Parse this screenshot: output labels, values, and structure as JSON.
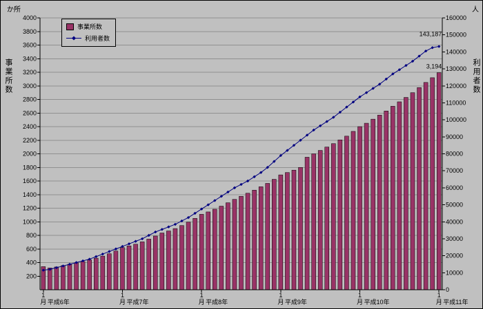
{
  "chart": {
    "left_unit": "か所",
    "right_unit": "人",
    "left_axis_title": "事業所数",
    "right_axis_title": "利用者数",
    "legend": {
      "bars_label": "事業所数",
      "line_label": "利用者数"
    }
  },
  "chart_data": {
    "type": "bar",
    "subtype": "bar+line combo",
    "n_points": 61,
    "x_januaries": [
      {
        "index": 0,
        "month": "1月",
        "year": "平成6年"
      },
      {
        "index": 12,
        "month": "1月",
        "year": "平成7年"
      },
      {
        "index": 24,
        "month": "1月",
        "year": "平成8年"
      },
      {
        "index": 36,
        "month": "1月",
        "year": "平成9年"
      },
      {
        "index": 48,
        "month": "1月",
        "year": "平成10年"
      },
      {
        "index": 60,
        "month": "1月",
        "year": "平成11年"
      }
    ],
    "series": [
      {
        "name": "事業所数",
        "type": "bar",
        "axis": "left",
        "color": "#993366",
        "values": [
          340,
          320,
          335,
          355,
          375,
          395,
          415,
          440,
          465,
          495,
          530,
          570,
          620,
          645,
          670,
          705,
          745,
          790,
          835,
          865,
          900,
          945,
          995,
          1050,
          1110,
          1145,
          1185,
          1230,
          1280,
          1330,
          1375,
          1420,
          1465,
          1515,
          1565,
          1625,
          1690,
          1725,
          1760,
          1800,
          1950,
          2000,
          2050,
          2100,
          2150,
          2205,
          2260,
          2330,
          2400,
          2450,
          2510,
          2570,
          2630,
          2700,
          2765,
          2830,
          2900,
          2975,
          3050,
          3120,
          3194
        ]
      },
      {
        "name": "利用者数",
        "type": "line",
        "axis": "right",
        "color": "#000080",
        "values": [
          11500,
          12000,
          13000,
          14000,
          15000,
          16000,
          17000,
          18000,
          19500,
          21000,
          22500,
          24000,
          25500,
          27000,
          28500,
          30000,
          32000,
          34000,
          35500,
          37000,
          38500,
          40500,
          42500,
          45000,
          47500,
          50000,
          52500,
          55000,
          57500,
          60000,
          62000,
          64000,
          66500,
          69000,
          72000,
          75500,
          79000,
          82000,
          85000,
          88000,
          91000,
          94000,
          96500,
          99000,
          101500,
          104500,
          107500,
          110500,
          113500,
          116000,
          118500,
          121000,
          124000,
          127000,
          129500,
          132000,
          134500,
          137500,
          140500,
          142500,
          143187
        ]
      }
    ],
    "left_axis": {
      "title": "事業所数",
      "unit": "か所",
      "min": 0,
      "max": 4000,
      "step": 200,
      "show_zero_label": false
    },
    "right_axis": {
      "title": "利用者数",
      "unit": "人",
      "min": 0,
      "max": 160000,
      "step": 10000,
      "show_zero_label": true
    },
    "annotations": [
      {
        "target": "bar-last",
        "text": "3,194"
      },
      {
        "target": "line-last",
        "text": "143,187"
      }
    ],
    "grid": true,
    "legend_position": "top-left-inside"
  }
}
